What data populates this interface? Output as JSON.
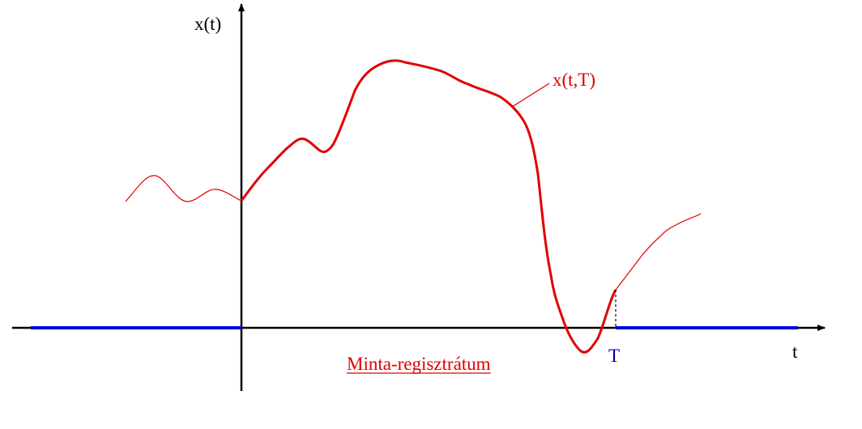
{
  "labels": {
    "y_axis": "x(t)",
    "curve": "x(t,T)",
    "x_axis": "t",
    "period": "T",
    "caption": "Minta-regisztrátum"
  }
}
